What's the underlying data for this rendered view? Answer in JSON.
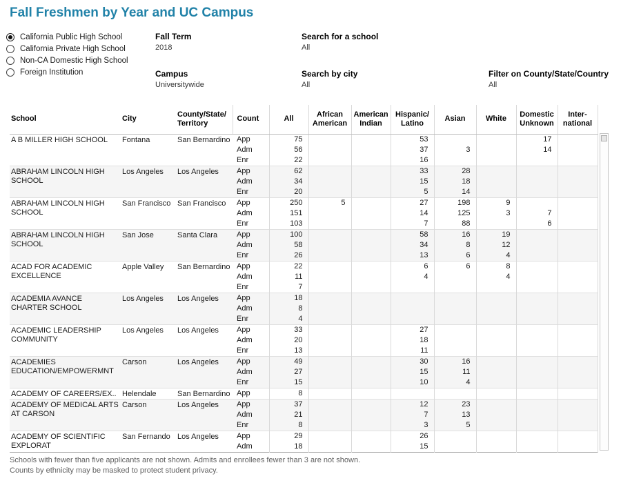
{
  "title": "Fall Freshmen by Year and UC Campus",
  "colors": {
    "title_accent": "#2182a8",
    "row_alt_background": "#f5f5f5"
  },
  "school_type": {
    "options": [
      {
        "label": "California Public High School",
        "selected": true
      },
      {
        "label": "California Private High School",
        "selected": false
      },
      {
        "label": "Non-CA Domestic High School",
        "selected": false
      },
      {
        "label": "Foreign Institution",
        "selected": false
      }
    ]
  },
  "filters": {
    "fall_term": {
      "label": "Fall Term",
      "value": "2018"
    },
    "campus": {
      "label": "Campus",
      "value": "Universitywide"
    },
    "search_school": {
      "label": "Search for a school",
      "value": "All"
    },
    "search_city": {
      "label": "Search by city",
      "value": "All"
    },
    "filter_county": {
      "label": "Filter on County/State/Country",
      "value": "All"
    }
  },
  "table": {
    "columns": [
      "School",
      "City",
      "County/State/\nTerritory",
      "Count",
      "All",
      "African\nAmerican",
      "American\nIndian",
      "Hispanic/\nLatino",
      "Asian",
      "White",
      "Domestic\nUnknown",
      "Inter-\nnational"
    ],
    "value_column_order": [
      "count",
      "all",
      "african_american",
      "american_indian",
      "hispanic_latino",
      "asian",
      "white",
      "domestic_unknown",
      "international"
    ],
    "rows": [
      {
        "school": "A B MILLER HIGH SCHOOL",
        "city": "Fontana",
        "county": "San Bernardino",
        "counts": [
          [
            "App",
            "75",
            "",
            "",
            "53",
            "",
            "",
            "17",
            ""
          ],
          [
            "Adm",
            "56",
            "",
            "",
            "37",
            "3",
            "",
            "14",
            ""
          ],
          [
            "Enr",
            "22",
            "",
            "",
            "16",
            "",
            "",
            "",
            ""
          ]
        ]
      },
      {
        "school": "ABRAHAM LINCOLN HIGH SCHOOL",
        "city": "Los Angeles",
        "county": "Los Angeles",
        "counts": [
          [
            "App",
            "62",
            "",
            "",
            "33",
            "28",
            "",
            "",
            ""
          ],
          [
            "Adm",
            "34",
            "",
            "",
            "15",
            "18",
            "",
            "",
            ""
          ],
          [
            "Enr",
            "20",
            "",
            "",
            "5",
            "14",
            "",
            "",
            ""
          ]
        ]
      },
      {
        "school": "ABRAHAM LINCOLN HIGH SCHOOL",
        "city": "San Francisco",
        "county": "San Francisco",
        "counts": [
          [
            "App",
            "250",
            "5",
            "",
            "27",
            "198",
            "9",
            "",
            ""
          ],
          [
            "Adm",
            "151",
            "",
            "",
            "14",
            "125",
            "3",
            "7",
            ""
          ],
          [
            "Enr",
            "103",
            "",
            "",
            "7",
            "88",
            "",
            "6",
            ""
          ]
        ]
      },
      {
        "school": "ABRAHAM LINCOLN HIGH SCHOOL",
        "city": "San Jose",
        "county": "Santa Clara",
        "counts": [
          [
            "App",
            "100",
            "",
            "",
            "58",
            "16",
            "19",
            "",
            ""
          ],
          [
            "Adm",
            "58",
            "",
            "",
            "34",
            "8",
            "12",
            "",
            ""
          ],
          [
            "Enr",
            "26",
            "",
            "",
            "13",
            "6",
            "4",
            "",
            ""
          ]
        ]
      },
      {
        "school": "ACAD FOR ACADEMIC EXCELLENCE",
        "city": "Apple Valley",
        "county": "San Bernardino",
        "counts": [
          [
            "App",
            "22",
            "",
            "",
            "6",
            "6",
            "8",
            "",
            ""
          ],
          [
            "Adm",
            "11",
            "",
            "",
            "4",
            "",
            "4",
            "",
            ""
          ],
          [
            "Enr",
            "7",
            "",
            "",
            "",
            "",
            "",
            "",
            ""
          ]
        ]
      },
      {
        "school": "ACADEMIA AVANCE CHARTER SCHOOL",
        "city": "Los Angeles",
        "county": "Los Angeles",
        "counts": [
          [
            "App",
            "18",
            "",
            "",
            "",
            "",
            "",
            "",
            ""
          ],
          [
            "Adm",
            "8",
            "",
            "",
            "",
            "",
            "",
            "",
            ""
          ],
          [
            "Enr",
            "4",
            "",
            "",
            "",
            "",
            "",
            "",
            ""
          ]
        ]
      },
      {
        "school": "ACADEMIC LEADERSHIP COMMUNITY",
        "city": "Los Angeles",
        "county": "Los Angeles",
        "counts": [
          [
            "App",
            "33",
            "",
            "",
            "27",
            "",
            "",
            "",
            ""
          ],
          [
            "Adm",
            "20",
            "",
            "",
            "18",
            "",
            "",
            "",
            ""
          ],
          [
            "Enr",
            "13",
            "",
            "",
            "11",
            "",
            "",
            "",
            ""
          ]
        ]
      },
      {
        "school": "ACADEMIES EDUCATION/EMPOWERMNT",
        "city": "Carson",
        "county": "Los Angeles",
        "counts": [
          [
            "App",
            "49",
            "",
            "",
            "30",
            "16",
            "",
            "",
            ""
          ],
          [
            "Adm",
            "27",
            "",
            "",
            "15",
            "11",
            "",
            "",
            ""
          ],
          [
            "Enr",
            "15",
            "",
            "",
            "10",
            "4",
            "",
            "",
            ""
          ]
        ]
      },
      {
        "school": "ACADEMY OF CAREERS/EX..",
        "city": "Helendale",
        "county": "San Bernardino",
        "counts": [
          [
            "App",
            "8",
            "",
            "",
            "",
            "",
            "",
            "",
            ""
          ]
        ]
      },
      {
        "school": "ACADEMY OF MEDICAL ARTS AT CARSON",
        "city": "Carson",
        "county": "Los Angeles",
        "counts": [
          [
            "App",
            "37",
            "",
            "",
            "12",
            "23",
            "",
            "",
            ""
          ],
          [
            "Adm",
            "21",
            "",
            "",
            "7",
            "13",
            "",
            "",
            ""
          ],
          [
            "Enr",
            "8",
            "",
            "",
            "3",
            "5",
            "",
            "",
            ""
          ]
        ]
      },
      {
        "school": "ACADEMY OF SCIENTIFIC EXPLORAT",
        "city": "San Fernando",
        "county": "Los Angeles",
        "counts": [
          [
            "App",
            "29",
            "",
            "",
            "26",
            "",
            "",
            "",
            ""
          ],
          [
            "Adm",
            "18",
            "",
            "",
            "15",
            "",
            "",
            "",
            ""
          ]
        ]
      }
    ]
  },
  "footnotes": [
    "Schools with fewer than five applicants are not shown. Admits and enrollees fewer than 3 are not shown.",
    "Counts by ethnicity may be masked to protect student privacy."
  ]
}
